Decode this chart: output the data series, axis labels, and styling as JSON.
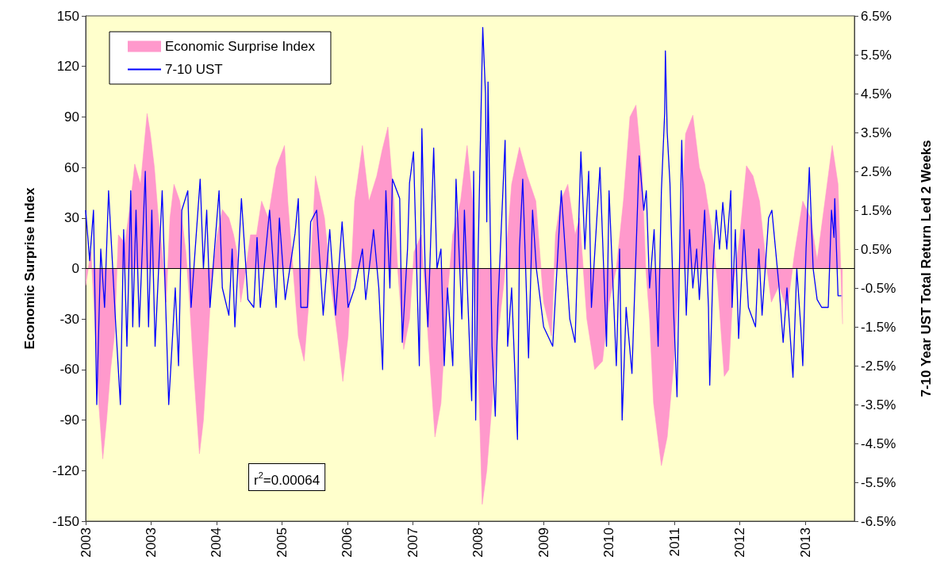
{
  "chart_data": {
    "type": "area",
    "ylabel": "Economic Surprise Index",
    "y2label": "7-10 Year UST Total Return Led 2 Weeks",
    "annotations": [
      "r$^{2}$=0.00064"
    ],
    "xlim": [
      "2003-01-03",
      "2014-08-03"
    ],
    "xticks": [
      {
        "value": "2003-01-03",
        "label": "2003"
      },
      {
        "value": "2003-12-29",
        "label": "2003"
      },
      {
        "value": "2004-12-23",
        "label": "2004"
      },
      {
        "value": "2005-12-18",
        "label": "2005"
      },
      {
        "value": "2006-12-13",
        "label": "2006"
      },
      {
        "value": "2007-12-08",
        "label": "2007"
      },
      {
        "value": "2008-12-02",
        "label": "2008"
      },
      {
        "value": "2009-11-27",
        "label": "2009"
      },
      {
        "value": "2010-11-22",
        "label": "2010"
      },
      {
        "value": "2011-11-17",
        "label": "2011"
      },
      {
        "value": "2012-11-11",
        "label": "2012"
      },
      {
        "value": "2013-11-06",
        "label": "2013"
      }
    ],
    "ylim": [
      -150,
      150
    ],
    "yticks": [
      -150,
      -120,
      -90,
      -60,
      -30,
      0,
      30,
      60,
      90,
      120,
      150
    ],
    "y2lim": [
      -6.5,
      6.5
    ],
    "y2ticks": [
      {
        "value": -6.5,
        "label": "-6.5%"
      },
      {
        "value": -5.5,
        "label": "-5.5%"
      },
      {
        "value": -4.5,
        "label": "-4.5%"
      },
      {
        "value": -3.5,
        "label": "-3.5%"
      },
      {
        "value": -2.5,
        "label": "-2.5%"
      },
      {
        "value": -1.5,
        "label": "-1.5%"
      },
      {
        "value": -0.5,
        "label": "-0.5%"
      },
      {
        "value": 0.5,
        "label": "0.5%"
      },
      {
        "value": 1.5,
        "label": "1.5%"
      },
      {
        "value": 2.5,
        "label": "2.5%"
      },
      {
        "value": 3.5,
        "label": "3.5%"
      },
      {
        "value": 4.5,
        "label": "4.5%"
      },
      {
        "value": 5.5,
        "label": "5.5%"
      },
      {
        "value": 6.5,
        "label": "6.5%"
      }
    ],
    "grid": false,
    "legend": "top left",
    "ref_lines": [
      {
        "axis": "y",
        "value": 0,
        "color": "#000000"
      }
    ],
    "series": [
      {
        "name": "Economic Surprise Index",
        "type": "area",
        "color": "#ff99cc",
        "x": [
          "2003-01-03",
          "2003-02-01",
          "2003-02-22",
          "2003-03-16",
          "2003-04-07",
          "2003-04-28",
          "2003-05-20",
          "2003-06-10",
          "2003-07-02",
          "2003-08-07",
          "2003-09-08",
          "2003-09-30",
          "2003-11-01",
          "2003-12-07",
          "2003-12-25",
          "2004-01-16",
          "2004-02-07",
          "2004-02-28",
          "2004-03-21",
          "2004-04-11",
          "2004-05-03",
          "2004-06-04",
          "2004-07-07",
          "2004-07-28",
          "2004-08-19",
          "2004-09-20",
          "2004-10-12",
          "2004-11-03",
          "2004-11-24",
          "2004-12-27",
          "2005-01-24",
          "2005-03-01",
          "2005-03-27",
          "2005-04-14",
          "2005-05-05",
          "2005-05-27",
          "2005-06-28",
          "2005-07-31",
          "2005-08-28",
          "2005-10-03",
          "2005-11-16",
          "2006-01-01",
          "2006-01-19",
          "2006-02-17",
          "2006-03-18",
          "2006-04-19",
          "2006-05-15",
          "2006-06-20",
          "2006-07-11",
          "2006-08-09",
          "2006-09-14",
          "2006-10-20",
          "2006-11-18",
          "2006-12-17",
          "2007-01-22",
          "2007-03-06",
          "2007-04-11",
          "2007-05-24",
          "2007-06-22",
          "2007-07-24",
          "2007-08-26",
          "2007-09-16",
          "2007-10-19",
          "2007-11-20",
          "2007-12-15",
          "2008-01-24",
          "2008-03-07",
          "2008-04-08",
          "2008-05-11",
          "2008-06-12",
          "2008-07-15",
          "2008-08-27",
          "2008-10-02",
          "2008-10-31",
          "2008-12-02",
          "2008-12-24",
          "2009-01-18",
          "2009-02-16",
          "2009-03-20",
          "2009-04-21",
          "2009-06-04",
          "2009-07-17",
          "2009-08-29",
          "2009-10-15",
          "2009-11-27",
          "2010-01-09",
          "2010-01-31",
          "2010-03-01",
          "2010-04-09",
          "2010-05-19",
          "2010-06-13",
          "2010-07-23",
          "2010-09-04",
          "2010-10-17",
          "2010-11-22",
          "2011-01-01",
          "2011-02-09",
          "2011-03-17",
          "2011-04-19",
          "2011-05-21",
          "2011-06-12",
          "2011-07-03",
          "2011-07-25",
          "2011-09-06",
          "2011-10-08",
          "2011-11-10",
          "2011-12-09",
          "2012-01-17",
          "2012-02-26",
          "2012-04-02",
          "2012-05-01",
          "2012-06-13",
          "2012-07-12",
          "2012-08-17",
          "2012-09-11",
          "2012-10-06",
          "2012-11-11",
          "2012-12-17",
          "2013-01-22",
          "2013-02-27",
          "2013-03-28",
          "2013-05-03",
          "2013-06-15",
          "2013-07-28",
          "2013-09-09",
          "2013-10-23",
          "2013-12-05",
          "2014-01-10",
          "2014-02-22",
          "2014-04-03",
          "2014-05-05",
          "2014-05-30"
        ],
        "values": [
          -10,
          10,
          -30,
          -80,
          -113,
          -90,
          -60,
          -40,
          20,
          15,
          40,
          62,
          50,
          92,
          80,
          60,
          30,
          10,
          -20,
          30,
          50,
          40,
          10,
          -20,
          -60,
          -110,
          -90,
          -50,
          -10,
          20,
          35,
          30,
          20,
          10,
          -20,
          -5,
          20,
          20,
          40,
          30,
          60,
          73,
          40,
          0,
          -40,
          -55,
          -20,
          55,
          45,
          30,
          -10,
          -40,
          -67,
          -40,
          40,
          73,
          40,
          55,
          70,
          84,
          40,
          0,
          -48,
          -30,
          10,
          20,
          -50,
          -100,
          -80,
          -20,
          20,
          40,
          73,
          40,
          -60,
          -140,
          -120,
          -80,
          -40,
          -10,
          50,
          72,
          55,
          40,
          -20,
          -40,
          20,
          40,
          50,
          20,
          30,
          -30,
          -60,
          -55,
          -20,
          0,
          40,
          90,
          97,
          60,
          0,
          -30,
          -80,
          -117,
          -100,
          -60,
          -10,
          80,
          91,
          60,
          50,
          20,
          -10,
          -64,
          -60,
          -10,
          20,
          61,
          55,
          40,
          10,
          -20,
          -10,
          -25,
          10,
          40,
          30,
          5,
          40,
          73,
          50,
          -33
        ]
      },
      {
        "name": "7-10 UST",
        "type": "line",
        "axis": "y2",
        "color": "#0000ff",
        "x": [
          "2003-01-03",
          "2003-01-25",
          "2003-02-15",
          "2003-03-05",
          "2003-03-27",
          "2003-04-17",
          "2003-05-09",
          "2003-06-18",
          "2003-07-13",
          "2003-07-31",
          "2003-08-18",
          "2003-09-08",
          "2003-09-19",
          "2003-10-07",
          "2003-10-25",
          "2003-11-27",
          "2003-12-15",
          "2004-01-02",
          "2004-01-20",
          "2004-02-28",
          "2004-04-04",
          "2004-05-10",
          "2004-05-28",
          "2004-06-15",
          "2004-07-18",
          "2004-08-05",
          "2004-09-24",
          "2004-10-12",
          "2004-10-30",
          "2004-11-17",
          "2005-01-06",
          "2005-01-24",
          "2005-03-01",
          "2005-03-19",
          "2005-04-03",
          "2005-05-09",
          "2005-06-14",
          "2005-07-16",
          "2005-08-03",
          "2005-08-21",
          "2005-10-11",
          "2005-11-16",
          "2005-12-04",
          "2006-01-05",
          "2006-02-28",
          "2006-03-18",
          "2006-04-01",
          "2006-05-07",
          "2006-05-25",
          "2006-06-27",
          "2006-08-02",
          "2006-09-07",
          "2006-10-09",
          "2006-11-14",
          "2006-12-17",
          "2007-01-22",
          "2007-03-06",
          "2007-03-24",
          "2007-05-06",
          "2007-06-04",
          "2007-06-25",
          "2007-07-13",
          "2007-08-04",
          "2007-08-18",
          "2007-09-27",
          "2007-10-11",
          "2007-11-09",
          "2007-11-20",
          "2007-12-12",
          "2008-01-13",
          "2008-01-27",
          "2008-02-14",
          "2008-02-29",
          "2008-04-01",
          "2008-04-19",
          "2008-05-11",
          "2008-05-29",
          "2008-06-16",
          "2008-07-15",
          "2008-08-02",
          "2008-09-03",
          "2008-09-17",
          "2008-10-27",
          "2008-11-07",
          "2008-11-18",
          "2008-12-02",
          "2008-12-27",
          "2009-01-11",
          "2009-01-18",
          "2009-01-25",
          "2009-02-16",
          "2009-03-06",
          "2009-03-20",
          "2009-04-29",
          "2009-05-13",
          "2009-06-04",
          "2009-07-06",
          "2009-07-17",
          "2009-08-04",
          "2009-09-05",
          "2009-09-27",
          "2009-10-18",
          "2009-11-27",
          "2010-01-16",
          "2010-03-04",
          "2010-04-20",
          "2010-05-19",
          "2010-06-20",
          "2010-07-12",
          "2010-08-02",
          "2010-08-17",
          "2010-10-03",
          "2010-11-08",
          "2010-11-22",
          "2011-01-01",
          "2011-01-19",
          "2011-02-02",
          "2011-02-24",
          "2011-03-28",
          "2011-05-07",
          "2011-06-01",
          "2011-06-15",
          "2011-07-03",
          "2011-07-28",
          "2011-08-19",
          "2011-09-06",
          "2011-09-24",
          "2011-09-28",
          "2011-10-08",
          "2011-10-23",
          "2011-11-13",
          "2011-12-01",
          "2011-12-27",
          "2012-01-10",
          "2012-01-21",
          "2012-02-08",
          "2012-02-26",
          "2012-03-18",
          "2012-04-02",
          "2012-05-01",
          "2012-05-22",
          "2012-05-29",
          "2012-06-16",
          "2012-07-04",
          "2012-07-22",
          "2012-08-09",
          "2012-08-31",
          "2012-09-22",
          "2012-09-29",
          "2012-10-17",
          "2012-11-04",
          "2012-12-03",
          "2012-12-28",
          "2013-02-05",
          "2013-02-23",
          "2013-03-13",
          "2013-04-18",
          "2013-05-06",
          "2013-06-15",
          "2013-07-07",
          "2013-07-28",
          "2013-08-30",
          "2013-09-20",
          "2013-10-12",
          "2013-10-23",
          "2013-11-10",
          "2013-11-28",
          "2013-12-19",
          "2014-01-10",
          "2014-02-04",
          "2014-03-12",
          "2014-03-30",
          "2014-04-13",
          "2014-04-17",
          "2014-05-05",
          "2014-05-23"
        ],
        "values": [
          1.5,
          0.2,
          1.5,
          -3.5,
          0.5,
          -1,
          2.0,
          -1.5,
          -3.5,
          1.0,
          -2.0,
          2.0,
          -1.5,
          1.5,
          -1.5,
          2.5,
          -1.5,
          1.5,
          -2.0,
          2.0,
          -3.5,
          -0.5,
          -2.5,
          1.5,
          2.0,
          -1.0,
          2.3,
          0,
          1.5,
          -1.0,
          2.0,
          -0.5,
          -1.2,
          0.5,
          -1.5,
          1.8,
          -0.8,
          -1.0,
          0.8,
          -1.0,
          1.5,
          -1.0,
          1.3,
          -0.8,
          0.9,
          1.8,
          -1.0,
          -1.0,
          1.2,
          1.5,
          -1.2,
          1.0,
          -1.2,
          1.2,
          -1.0,
          -0.5,
          0.5,
          -0.8,
          1.0,
          -0.5,
          -2.6,
          2.0,
          -0.5,
          2.3,
          1.8,
          -1.9,
          0.5,
          2.2,
          3.0,
          -2.5,
          3.6,
          0,
          -1.5,
          3.1,
          0,
          0.5,
          -2.5,
          -0.5,
          -2.5,
          2.3,
          -1.3,
          1.5,
          -3.4,
          2.5,
          -3.9,
          0.5,
          6.2,
          4.5,
          1.2,
          4.8,
          -2.0,
          -3.8,
          -1.0,
          3.3,
          -2.0,
          -0.5,
          -4.4,
          0.5,
          2.3,
          -2.3,
          1.5,
          0,
          -1.5,
          -2.0,
          2.0,
          -1.3,
          -1.9,
          3.0,
          0.5,
          2.5,
          -1.0,
          2.6,
          -2.0,
          2.0,
          -2.5,
          0.5,
          -3.9,
          -1.0,
          -2.7,
          2.9,
          1.5,
          2.0,
          -0.5,
          1.0,
          -2.0,
          2.0,
          4.0,
          5.6,
          3.5,
          2.2,
          -1.2,
          -3.3,
          3.3,
          0.5,
          -1.2,
          1.0,
          -0.5,
          0.5,
          -0.8,
          1.5,
          -1.0,
          -3.0,
          0,
          1.5,
          0.5,
          1.7,
          0.5,
          2.0,
          -1.0,
          1.0,
          -1.8,
          1.0,
          -1.0,
          -1.5,
          0.5,
          -1.2,
          1.3,
          1.5,
          -0.5,
          -1.9,
          -0.5,
          -2.8,
          0,
          -1.5,
          -2.5,
          0.5,
          2.6,
          0,
          -0.8,
          -1.0,
          -1.0,
          1.5,
          0.8,
          1.8,
          -0.7,
          -0.7
        ]
      }
    ]
  }
}
